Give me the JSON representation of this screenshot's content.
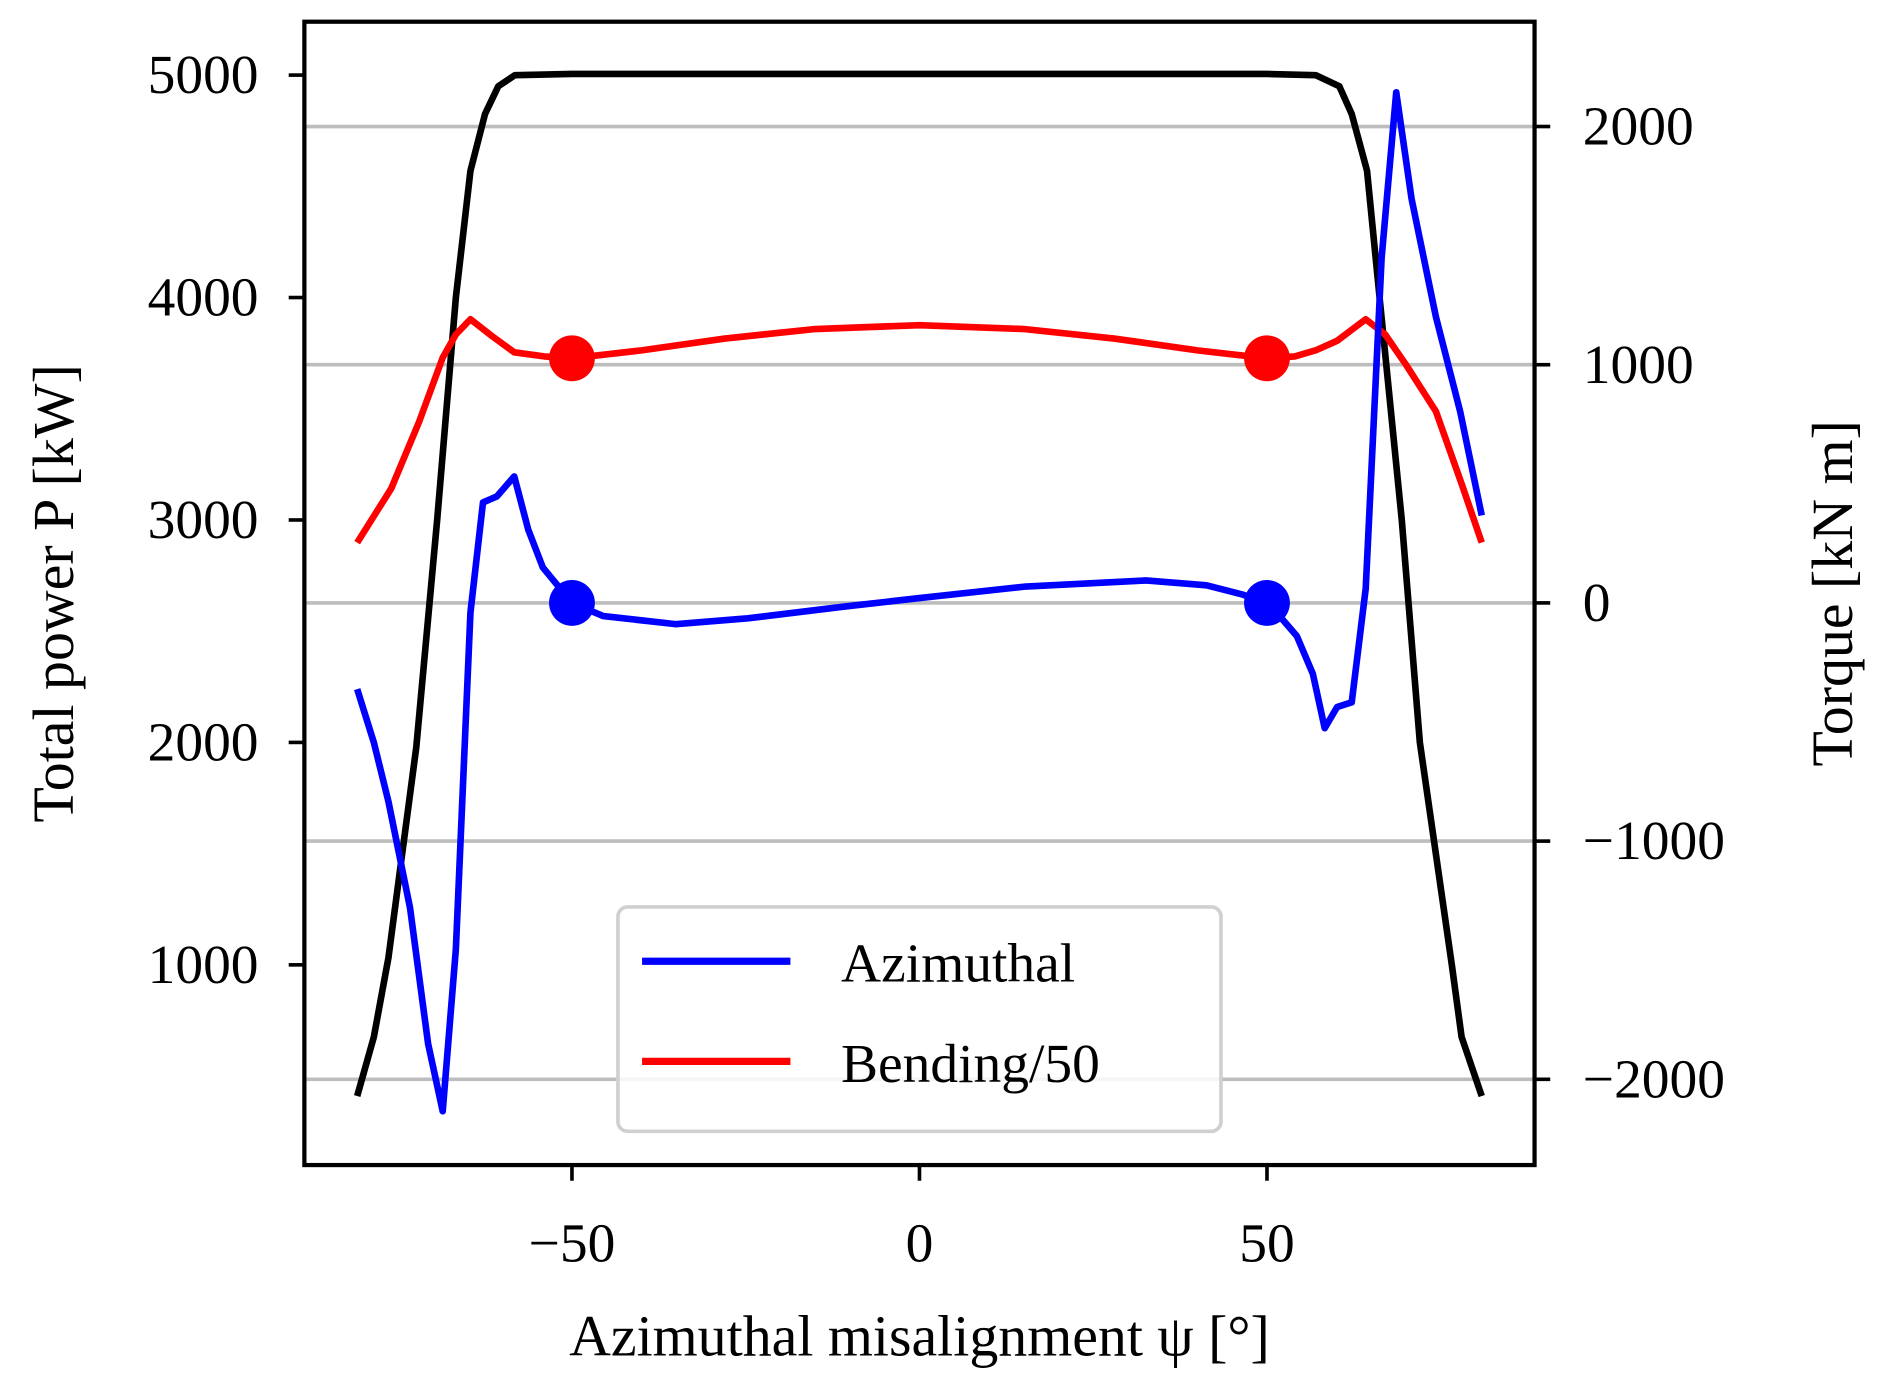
{
  "chart_data": {
    "type": "line",
    "xlabel": "Azimuthal misalignment ψ [°]",
    "ylabel_left": "Total power P [kW]",
    "ylabel_right": "Torque [kN m]",
    "xlim": [
      -88.5,
      88.5
    ],
    "ylim_left": [
      100,
      5240
    ],
    "ylim_right": [
      -2360,
      2440
    ],
    "xticks": [
      {
        "v": -50,
        "label": "−50"
      },
      {
        "v": 0,
        "label": "0"
      },
      {
        "v": 50,
        "label": "50"
      }
    ],
    "yticks_left": [
      {
        "v": 1000,
        "label": "1000"
      },
      {
        "v": 2000,
        "label": "2000"
      },
      {
        "v": 3000,
        "label": "3000"
      },
      {
        "v": 4000,
        "label": "4000"
      },
      {
        "v": 5000,
        "label": "5000"
      }
    ],
    "yticks_right": [
      {
        "v": -2000,
        "label": "−2000"
      },
      {
        "v": -1000,
        "label": "−1000"
      },
      {
        "v": 0,
        "label": "0"
      },
      {
        "v": 1000,
        "label": "1000"
      },
      {
        "v": 2000,
        "label": "2000"
      }
    ],
    "grid": "horizontal on right-axis ticks",
    "legend": {
      "placement": "lower-center",
      "entries": [
        "Azimuthal",
        "Bending/50"
      ]
    },
    "series": [
      {
        "name": "Total power",
        "axis": "left",
        "color": "#000000",
        "x": [
          -80.9,
          -78.5,
          -76.4,
          -72.4,
          -69.4,
          -66.7,
          -64.6,
          -62.5,
          -60.6,
          -58.2,
          -50,
          0,
          50,
          57,
          60.4,
          62.2,
          64.4,
          66.2,
          69.4,
          72,
          76.6,
          78,
          80.9
        ],
        "y": [
          410,
          676,
          1032,
          1979,
          3000,
          4000,
          4570,
          4825,
          4950,
          5000,
          5005,
          5005,
          5005,
          5000,
          4950,
          4825,
          4570,
          4000,
          3000,
          2000,
          1000,
          676,
          410
        ]
      },
      {
        "name": "Bending/50",
        "axis": "right",
        "color": "#ff0000",
        "x": [
          -80.9,
          -76,
          -72,
          -68.6,
          -66.7,
          -64.6,
          -61.5,
          -58.3,
          -54,
          -50,
          -40,
          -28,
          -15,
          0,
          15,
          28,
          40,
          50,
          54,
          57,
          60.1,
          64.2,
          67,
          70,
          74.3,
          78,
          80.9
        ],
        "y": [
          253,
          480,
          760,
          1030,
          1127,
          1191,
          1120,
          1052,
          1035,
          1027,
          1060,
          1110,
          1150,
          1166,
          1150,
          1110,
          1060,
          1027,
          1035,
          1060,
          1100,
          1191,
          1127,
          1000,
          804,
          500,
          253
        ],
        "markers": [
          {
            "x": -50,
            "y": 1027
          },
          {
            "x": 50,
            "y": 1027
          }
        ]
      },
      {
        "name": "Azimuthal",
        "axis": "right",
        "color": "#0000ff",
        "x": [
          -80.9,
          -78.5,
          -76.4,
          -73.3,
          -70.7,
          -68.6,
          -66.7,
          -64.6,
          -62.8,
          -60.8,
          -58.3,
          -56.3,
          -54.2,
          -50,
          -45.5,
          -35.1,
          -24.7,
          -10.8,
          0,
          15.3,
          32.6,
          41.3,
          46.5,
          50,
          52.1,
          54.3,
          56.6,
          58.3,
          60.1,
          62.2,
          64.2,
          66.5,
          68.6,
          70.8,
          74.3,
          77.8,
          80.9
        ],
        "y": [
          -362,
          -586,
          -834,
          -1280,
          -1851,
          -2134,
          -1454,
          -40,
          422,
          447,
          531,
          308,
          149,
          0,
          -55,
          -89,
          -65,
          -15,
          20,
          69,
          94,
          74,
          35,
          0,
          -65,
          -139,
          -298,
          -526,
          -437,
          -417,
          60,
          1449,
          2144,
          1697,
          1201,
          804,
          367
        ],
        "markers": [
          {
            "x": -50,
            "y": 0
          },
          {
            "x": 50,
            "y": 0
          }
        ]
      }
    ]
  }
}
